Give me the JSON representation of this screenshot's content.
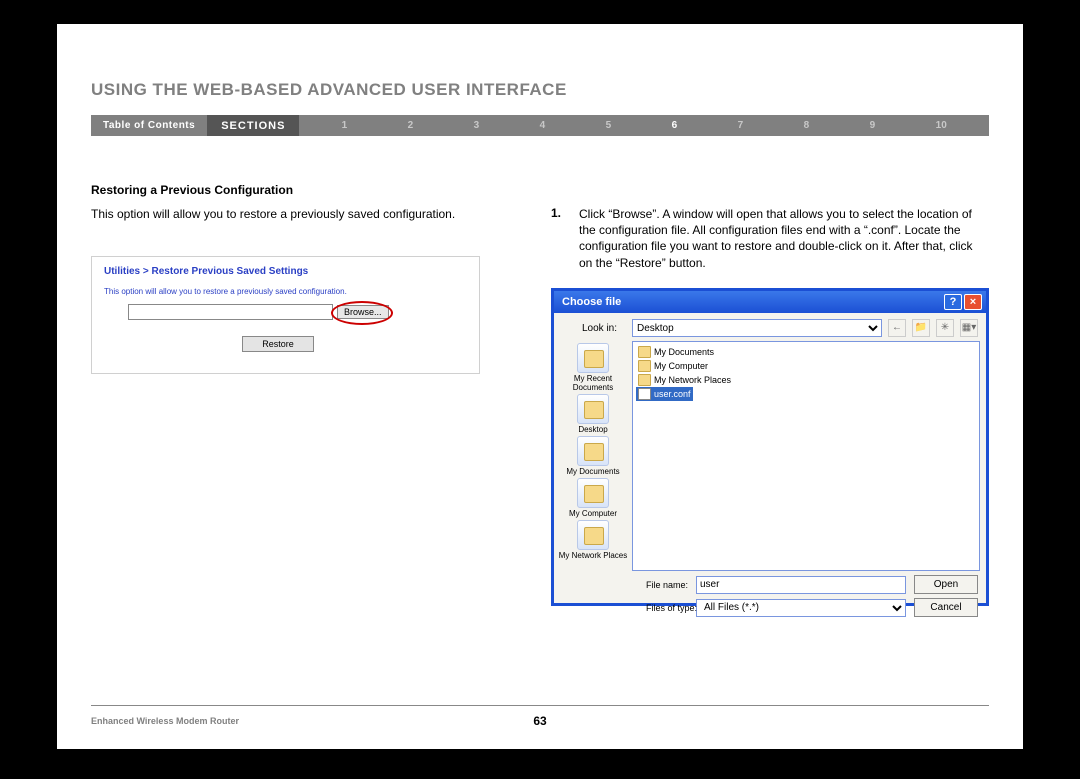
{
  "header": "USING THE WEB-BASED ADVANCED USER INTERFACE",
  "nav": {
    "toc": "Table of Contents",
    "sections_label": "SECTIONS",
    "items": [
      "1",
      "2",
      "3",
      "4",
      "5",
      "6",
      "7",
      "8",
      "9",
      "10"
    ],
    "active": "6"
  },
  "left": {
    "subhead": "Restoring a Previous Configuration",
    "body": "This option will allow you to restore a previously saved configuration.",
    "panel": {
      "crumb": "Utilities > Restore Previous Saved Settings",
      "desc": "This option will allow you to restore a previously saved configuration.",
      "browse_label": "Browse...",
      "restore_label": "Restore",
      "input_value": ""
    }
  },
  "right": {
    "step_num": "1.",
    "step_text": "Click “Browse”. A window will open that allows you to select the location of the configuration file. All configuration files end with a “.conf”. Locate the configuration file you want to restore and double-click on it. After that, click on the “Restore” button."
  },
  "dialog": {
    "title": "Choose file",
    "lookin_label": "Look in:",
    "lookin_value": "Desktop",
    "places": [
      "My Recent Documents",
      "Desktop",
      "My Documents",
      "My Computer",
      "My Network Places"
    ],
    "files": [
      {
        "name": "My Documents",
        "type": "folder",
        "selected": false
      },
      {
        "name": "My Computer",
        "type": "folder",
        "selected": false
      },
      {
        "name": "My Network Places",
        "type": "folder",
        "selected": false
      },
      {
        "name": "user.conf",
        "type": "file",
        "selected": true
      }
    ],
    "filename_label": "File name:",
    "filename_value": "user",
    "filetype_label": "Files of type:",
    "filetype_value": "All Files (*.*)",
    "open_label": "Open",
    "cancel_label": "Cancel"
  },
  "footer": {
    "left": "Enhanced Wireless Modem Router",
    "page": "63"
  },
  "colors": {
    "page_bg": "#ffffff",
    "outer_bg": "#000000",
    "header_gray": "#808080",
    "nav_gray": "#808080",
    "nav_dark": "#555555",
    "link_blue": "#2a3fc4",
    "xp_blue": "#1b4fd4",
    "highlight_red": "#cc0000",
    "selection_blue": "#316ac5"
  }
}
